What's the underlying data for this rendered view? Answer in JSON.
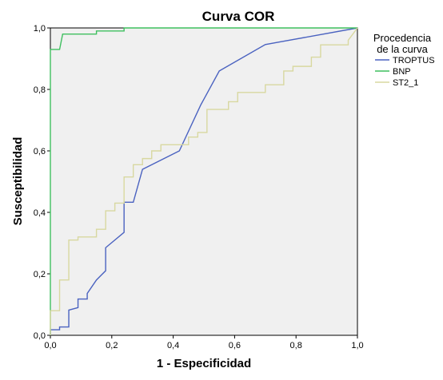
{
  "chart_data": {
    "type": "line",
    "title": "Curva COR",
    "xlabel": "1 - Especificidad",
    "ylabel": "Susceptibilidad",
    "xlim": [
      0,
      1
    ],
    "ylim": [
      0,
      1
    ],
    "grid": false,
    "legend_position": "right",
    "x_ticks": [
      "0,0",
      "0,2",
      "0,4",
      "0,6",
      "0,8",
      "1,0"
    ],
    "y_ticks": [
      "0,0",
      "0,2",
      "0,4",
      "0,6",
      "0,8",
      "1,0"
    ],
    "legend": {
      "title_lines": [
        "Procedencia",
        "de la curva"
      ]
    },
    "series": [
      {
        "name": "TROPTUS",
        "color": "#4a62c0",
        "step": false,
        "points": [
          [
            0,
            0
          ],
          [
            0,
            0.018
          ],
          [
            0.03,
            0.018
          ],
          [
            0.03,
            0.027
          ],
          [
            0.06,
            0.027
          ],
          [
            0.06,
            0.082
          ],
          [
            0.09,
            0.09
          ],
          [
            0.09,
            0.118
          ],
          [
            0.12,
            0.118
          ],
          [
            0.12,
            0.136
          ],
          [
            0.15,
            0.18
          ],
          [
            0.18,
            0.21
          ],
          [
            0.18,
            0.285
          ],
          [
            0.24,
            0.335
          ],
          [
            0.24,
            0.433
          ],
          [
            0.27,
            0.433
          ],
          [
            0.3,
            0.54
          ],
          [
            0.42,
            0.6
          ],
          [
            0.49,
            0.75
          ],
          [
            0.55,
            0.86
          ],
          [
            0.7,
            0.946
          ],
          [
            0.75,
            0.955
          ],
          [
            1,
            1
          ]
        ]
      },
      {
        "name": "BNP",
        "color": "#3fbf5f",
        "step": false,
        "points": [
          [
            0,
            0
          ],
          [
            0,
            0.93
          ],
          [
            0.03,
            0.93
          ],
          [
            0.04,
            0.98
          ],
          [
            0.15,
            0.98
          ],
          [
            0.15,
            0.99
          ],
          [
            0.24,
            0.99
          ],
          [
            0.24,
            1
          ],
          [
            1,
            1
          ]
        ]
      },
      {
        "name": "ST2_1",
        "color": "#d8d8a0",
        "step": true,
        "points": [
          [
            0,
            0
          ],
          [
            0,
            0.08
          ],
          [
            0.03,
            0.08
          ],
          [
            0.03,
            0.18
          ],
          [
            0.06,
            0.18
          ],
          [
            0.06,
            0.31
          ],
          [
            0.09,
            0.31
          ],
          [
            0.09,
            0.32
          ],
          [
            0.15,
            0.32
          ],
          [
            0.15,
            0.345
          ],
          [
            0.18,
            0.345
          ],
          [
            0.18,
            0.405
          ],
          [
            0.21,
            0.405
          ],
          [
            0.21,
            0.43
          ],
          [
            0.24,
            0.43
          ],
          [
            0.24,
            0.515
          ],
          [
            0.27,
            0.515
          ],
          [
            0.27,
            0.555
          ],
          [
            0.3,
            0.555
          ],
          [
            0.3,
            0.575
          ],
          [
            0.33,
            0.575
          ],
          [
            0.33,
            0.6
          ],
          [
            0.36,
            0.6
          ],
          [
            0.36,
            0.62
          ],
          [
            0.45,
            0.62
          ],
          [
            0.45,
            0.645
          ],
          [
            0.48,
            0.645
          ],
          [
            0.48,
            0.66
          ],
          [
            0.51,
            0.66
          ],
          [
            0.51,
            0.735
          ],
          [
            0.58,
            0.735
          ],
          [
            0.58,
            0.76
          ],
          [
            0.61,
            0.76
          ],
          [
            0.61,
            0.79
          ],
          [
            0.7,
            0.79
          ],
          [
            0.7,
            0.815
          ],
          [
            0.76,
            0.815
          ],
          [
            0.76,
            0.86
          ],
          [
            0.79,
            0.86
          ],
          [
            0.79,
            0.875
          ],
          [
            0.85,
            0.875
          ],
          [
            0.85,
            0.905
          ],
          [
            0.88,
            0.905
          ],
          [
            0.88,
            0.945
          ],
          [
            0.97,
            0.945
          ],
          [
            0.97,
            0.96
          ],
          [
            1,
            1
          ]
        ]
      }
    ]
  }
}
